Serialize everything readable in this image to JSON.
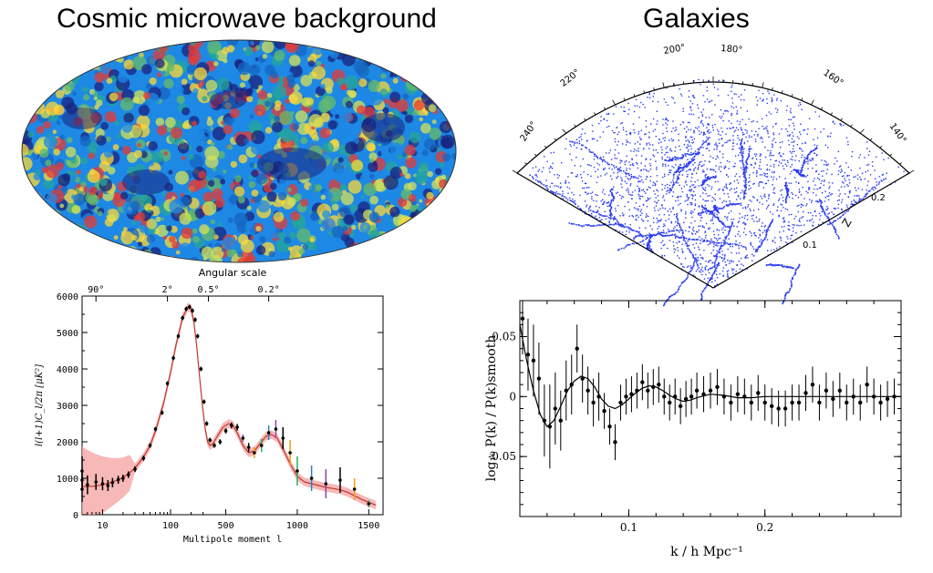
{
  "titles": {
    "cmb": "Cosmic microwave background",
    "galaxies": "Galaxies"
  },
  "cone": {
    "ra_labels": [
      "240°",
      "220°",
      "200°",
      "180°",
      "160°",
      "140°"
    ],
    "z_ticks": [
      "0.1",
      "0.2"
    ],
    "z_label": "Z",
    "point_color": "#2b3cf0"
  },
  "cmb_map": {
    "colors": [
      "#1a237e",
      "#1565c0",
      "#1e88e5",
      "#26a69a",
      "#66bb6a",
      "#d4e157",
      "#fdd835",
      "#e53935"
    ]
  },
  "chart_data": [
    {
      "type": "line",
      "title": "",
      "top_axis_label": "Angular scale",
      "top_ticks": [
        "90°",
        "2°",
        "0.5°",
        "0.2°"
      ],
      "xlabel": "Multipole moment l",
      "ylabel": "l(l+1)C_l/2π [μK²]",
      "x_scale": "log-then-linear",
      "xlim": [
        5,
        1600
      ],
      "ylim": [
        0,
        6000
      ],
      "x_ticks": [
        "10",
        "100",
        "500",
        "1000",
        "1500"
      ],
      "y_ticks": [
        "0",
        "1000",
        "2000",
        "3000",
        "4000",
        "5000",
        "6000"
      ],
      "band_color": "#f4a0a0",
      "curve_color": "#c0392b",
      "series": [
        {
          "x": [
            2,
            3,
            4,
            5,
            6,
            7,
            8,
            10,
            12,
            14,
            17,
            20,
            25,
            30,
            40,
            50,
            60,
            80,
            100,
            120,
            150,
            180,
            200,
            220,
            240,
            260,
            290,
            320,
            350,
            380,
            410,
            440,
            480,
            520,
            550,
            580,
            620,
            660,
            700,
            740,
            780,
            820,
            860,
            900,
            950,
            1000,
            1050,
            1100,
            1150,
            1200,
            1250,
            1300,
            1350,
            1400,
            1450,
            1500,
            1550
          ],
          "values": [
            900,
            850,
            800,
            780,
            770,
            780,
            790,
            820,
            860,
            900,
            960,
            1020,
            1150,
            1280,
            1580,
            1900,
            2300,
            3100,
            3900,
            4650,
            5400,
            5700,
            5650,
            5300,
            4700,
            4000,
            3100,
            2400,
            2000,
            1900,
            1950,
            2150,
            2400,
            2500,
            2450,
            2250,
            1900,
            1700,
            1750,
            1950,
            2150,
            2200,
            2100,
            1800,
            1400,
            1050,
            900,
            850,
            800,
            750,
            720,
            680,
            620,
            520,
            420,
            340,
            260
          ]
        }
      ],
      "points": {
        "x": [
          3,
          4,
          5,
          6,
          8,
          10,
          12,
          14,
          17,
          20,
          24,
          30,
          40,
          50,
          60,
          75,
          90,
          110,
          130,
          150,
          170,
          190,
          210,
          230,
          250,
          280,
          310,
          340,
          380,
          420,
          460,
          500,
          540,
          580,
          620,
          660,
          700,
          750,
          800,
          850,
          900,
          950,
          1000,
          1100,
          1200,
          1300,
          1400,
          1500
        ],
        "values": [
          1200,
          700,
          950,
          820,
          900,
          850,
          800,
          880,
          960,
          1000,
          1100,
          1250,
          1550,
          1900,
          2350,
          2800,
          3600,
          4300,
          4900,
          5400,
          5650,
          5700,
          5600,
          5350,
          4900,
          4000,
          3100,
          2500,
          2050,
          1900,
          2000,
          2300,
          2450,
          2400,
          2100,
          1850,
          1700,
          1900,
          2250,
          2350,
          2100,
          1700,
          1200,
          1000,
          850,
          950,
          700,
          300
        ],
        "errors": [
          400,
          350,
          300,
          260,
          220,
          180,
          150,
          130,
          110,
          100,
          90,
          80,
          70,
          60,
          60,
          60,
          60,
          60,
          60,
          60,
          60,
          60,
          60,
          60,
          60,
          60,
          60,
          60,
          60,
          60,
          70,
          70,
          80,
          90,
          100,
          120,
          150,
          180,
          200,
          250,
          300,
          350,
          400,
          350,
          400,
          350,
          300,
          100
        ]
      }
    },
    {
      "type": "scatter",
      "title": "",
      "xlabel": "k / h Mpc⁻¹",
      "ylabel": "log₁₀ P(k) / P(k)smooth",
      "xlim": [
        0.02,
        0.3
      ],
      "ylim": [
        -0.1,
        0.08
      ],
      "x_ticks": [
        "0.1",
        "0.2"
      ],
      "y_ticks": [
        "-0.05",
        "0",
        "0.05"
      ],
      "model": {
        "x": [
          0.02,
          0.025,
          0.03,
          0.035,
          0.04,
          0.045,
          0.05,
          0.055,
          0.06,
          0.065,
          0.07,
          0.075,
          0.08,
          0.085,
          0.09,
          0.095,
          0.1,
          0.105,
          0.11,
          0.115,
          0.12,
          0.125,
          0.13,
          0.135,
          0.14,
          0.145,
          0.15,
          0.16,
          0.17,
          0.18,
          0.19,
          0.2,
          0.22,
          0.24,
          0.26,
          0.28,
          0.3
        ],
        "values": [
          0.06,
          0.03,
          0.005,
          -0.015,
          -0.025,
          -0.02,
          -0.008,
          0.005,
          0.013,
          0.017,
          0.015,
          0.008,
          -0.002,
          -0.008,
          -0.01,
          -0.007,
          -0.002,
          0.003,
          0.007,
          0.009,
          0.008,
          0.005,
          0.001,
          -0.002,
          -0.004,
          -0.003,
          -0.001,
          0.002,
          0.001,
          -0.001,
          -0.001,
          0.0,
          0.0,
          0.0,
          0.0,
          0.0,
          0.0
        ]
      },
      "points": {
        "x": [
          0.022,
          0.026,
          0.03,
          0.034,
          0.038,
          0.042,
          0.046,
          0.05,
          0.054,
          0.058,
          0.062,
          0.066,
          0.07,
          0.074,
          0.078,
          0.082,
          0.086,
          0.09,
          0.094,
          0.098,
          0.102,
          0.106,
          0.11,
          0.114,
          0.118,
          0.122,
          0.126,
          0.13,
          0.134,
          0.138,
          0.142,
          0.146,
          0.15,
          0.155,
          0.16,
          0.165,
          0.17,
          0.175,
          0.18,
          0.185,
          0.19,
          0.195,
          0.2,
          0.205,
          0.21,
          0.215,
          0.22,
          0.225,
          0.23,
          0.235,
          0.24,
          0.245,
          0.25,
          0.255,
          0.26,
          0.265,
          0.27,
          0.275,
          0.28,
          0.285,
          0.29,
          0.295
        ],
        "values": [
          0.065,
          0.035,
          0.03,
          0.015,
          -0.02,
          -0.025,
          -0.01,
          -0.02,
          0.005,
          0.01,
          0.04,
          0.015,
          0.005,
          -0.005,
          0.0,
          -0.012,
          -0.025,
          -0.038,
          -0.005,
          0.0,
          0.002,
          0.005,
          0.012,
          0.005,
          0.008,
          0.01,
          0.0,
          -0.005,
          0.0,
          -0.008,
          -0.002,
          0.0,
          0.005,
          0.002,
          0.005,
          0.008,
          0.0,
          -0.005,
          0.002,
          0.0,
          -0.005,
          0.003,
          -0.005,
          -0.008,
          -0.01,
          -0.01,
          -0.005,
          -0.005,
          0.003,
          0.01,
          -0.005,
          0.005,
          -0.002,
          0.005,
          -0.005,
          0.0,
          -0.005,
          0.01,
          0.0,
          -0.005,
          -0.002,
          0.0
        ],
        "errors": [
          0.03,
          0.03,
          0.03,
          0.03,
          0.03,
          0.035,
          0.03,
          0.025,
          0.025,
          0.025,
          0.02,
          0.02,
          0.02,
          0.02,
          0.02,
          0.015,
          0.015,
          0.015,
          0.015,
          0.015,
          0.015,
          0.015,
          0.015,
          0.015,
          0.015,
          0.015,
          0.015,
          0.015,
          0.015,
          0.015,
          0.015,
          0.015,
          0.015,
          0.015,
          0.015,
          0.015,
          0.015,
          0.015,
          0.015,
          0.015,
          0.015,
          0.015,
          0.015,
          0.015,
          0.015,
          0.015,
          0.015,
          0.015,
          0.015,
          0.015,
          0.015,
          0.015,
          0.015,
          0.015,
          0.015,
          0.015,
          0.015,
          0.015,
          0.015,
          0.015,
          0.015,
          0.015
        ]
      }
    }
  ]
}
